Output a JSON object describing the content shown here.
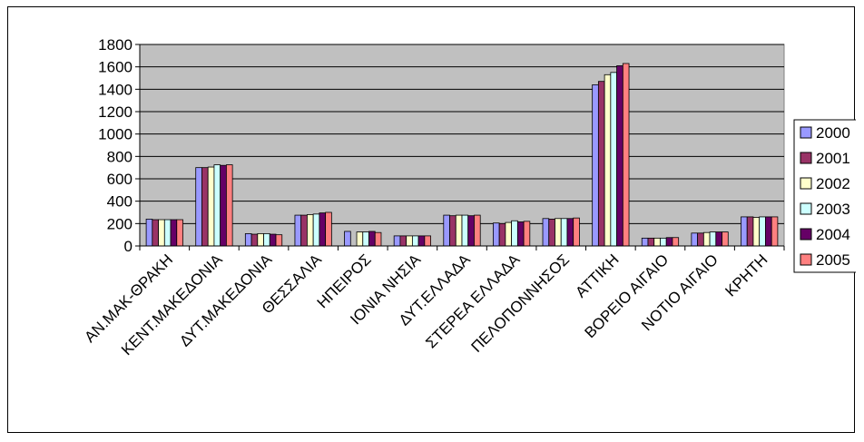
{
  "chart_data": {
    "type": "bar",
    "title": "",
    "xlabel": "",
    "ylabel": "",
    "ylim": [
      0,
      1800
    ],
    "yticks": [
      0,
      200,
      400,
      600,
      800,
      1000,
      1200,
      1400,
      1600,
      1800
    ],
    "grid": true,
    "legend_position": "right",
    "plot_background": "#c0c0c0",
    "categories": [
      "ΑΝ.ΜΑΚ-ΘΡΑΚΗ",
      "ΚΕΝΤ.ΜΑΚΕΔΟΝΙΑ",
      "ΔΥΤ.ΜΑΚΕΔΟΝΙΑ",
      "ΘΕΣΣΑΛΙΑ",
      "ΗΠΕΙΡΟΣ",
      "ΙΟΝΙΑ ΝΗΣΙΑ",
      "ΔΥΤ.ΕΛΛΑΔΑ",
      "ΣΤΕΡΕΑ ΕΛΛΑΔΑ",
      "ΠΕΛΟΠΟΝΝΗΣΟΣ",
      "ΑΤΤΙΚΗ",
      "ΒΟΡΕΙΟ ΑΙΓΑΙΟ",
      "ΝΟΤΙΟ ΑΙΓΑΙΟ",
      "ΚΡΗΤΗ"
    ],
    "series": [
      {
        "name": "2000",
        "color": "#9999ff",
        "values": [
          240,
          700,
          110,
          275,
          130,
          90,
          275,
          205,
          245,
          1440,
          70,
          115,
          260
        ]
      },
      {
        "name": "2001",
        "color": "#993366",
        "values": [
          235,
          700,
          105,
          275,
          0,
          90,
          270,
          200,
          240,
          1470,
          70,
          115,
          260
        ]
      },
      {
        "name": "2002",
        "color": "#ffffcc",
        "values": [
          235,
          705,
          110,
          280,
          125,
          90,
          275,
          210,
          245,
          1530,
          70,
          120,
          255
        ]
      },
      {
        "name": "2003",
        "color": "#ccffff",
        "values": [
          235,
          725,
          110,
          285,
          125,
          90,
          275,
          225,
          245,
          1550,
          70,
          125,
          260
        ]
      },
      {
        "name": "2004",
        "color": "#660066",
        "values": [
          235,
          720,
          105,
          295,
          130,
          90,
          270,
          215,
          245,
          1610,
          75,
          125,
          260
        ]
      },
      {
        "name": "2005",
        "color": "#ff8080",
        "values": [
          235,
          725,
          100,
          300,
          120,
          90,
          275,
          220,
          250,
          1630,
          75,
          125,
          260
        ]
      }
    ]
  }
}
